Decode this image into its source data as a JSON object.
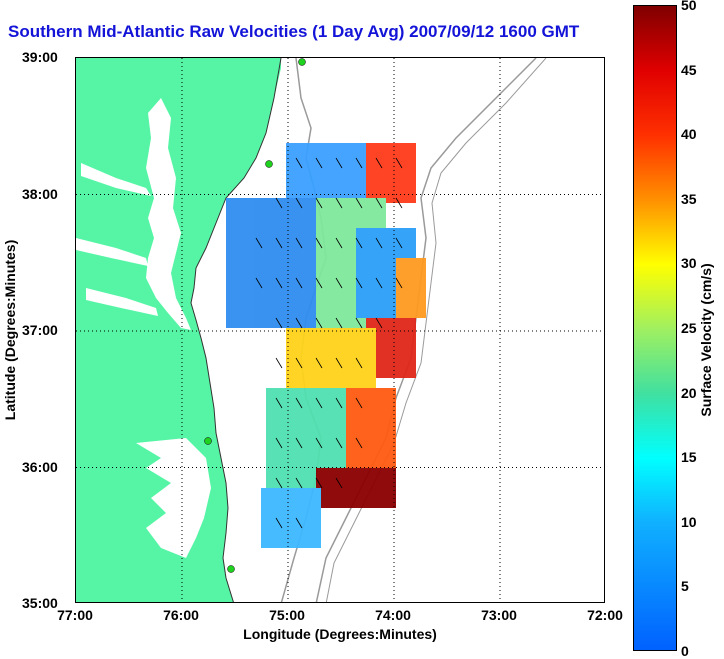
{
  "title": "Southern Mid-Atlantic Raw Velocities (1 Day Avg) 2007/09/12 1600 GMT",
  "x_axis": {
    "label": "Longitude (Degrees:Minutes)",
    "ticks": [
      "77:00",
      "76:00",
      "75:00",
      "74:00",
      "73:00",
      "72:00"
    ],
    "range": [
      -77,
      -72
    ]
  },
  "y_axis": {
    "label": "Latitude (Degrees:Minutes)",
    "ticks": [
      "39:00",
      "38:00",
      "37:00",
      "36:00",
      "35:00"
    ],
    "range": [
      35,
      39
    ]
  },
  "colorbar": {
    "label": "Surface Velocity (cm/s)",
    "ticks": [
      "50",
      "45",
      "40",
      "35",
      "30",
      "25",
      "20",
      "15",
      "10",
      "5",
      "0"
    ],
    "range": [
      0,
      50
    ],
    "colormap": "jet"
  },
  "colors": {
    "title": "#1414d8",
    "land": "#55f5a5",
    "bathymetry": "#9a9a9a",
    "station": "#1fd21f"
  },
  "gridlines": "dotted"
}
